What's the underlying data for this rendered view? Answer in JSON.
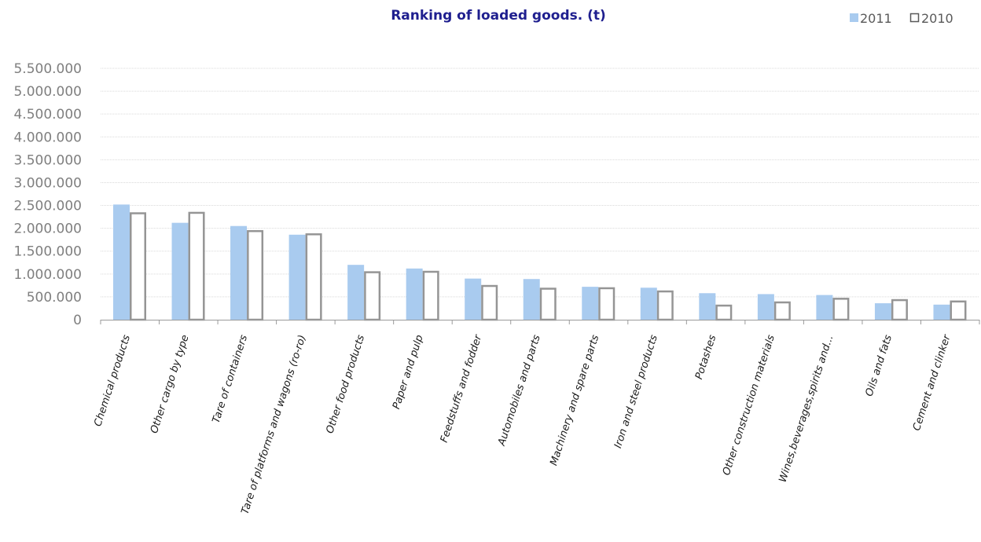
{
  "chart_data": {
    "type": "bar",
    "title": "Ranking of loaded goods. (t)",
    "xlabel": "",
    "ylabel": "",
    "categories": [
      "Chemical products",
      "Other cargo by type",
      "Tare of containers",
      "Tare of platforms and wagons (ro-ro)",
      "Other food products",
      "Paper and pulp",
      "Feedstuffs and fodder",
      "Automobiles and parts",
      "Machinery and spare parts",
      "Iron and steel products",
      "Potashes",
      "Other construction materials",
      "Wines,beverages,spirits and...",
      "Oils and fats",
      "Cement and clinker"
    ],
    "series": [
      {
        "name": "2011",
        "color": "#a9cbef",
        "style": "filled",
        "values": [
          2520000,
          2120000,
          2050000,
          1860000,
          1200000,
          1120000,
          900000,
          890000,
          720000,
          700000,
          580000,
          560000,
          540000,
          360000,
          330000
        ]
      },
      {
        "name": "2010",
        "color": "#959595",
        "style": "outline",
        "values": [
          2350000,
          2360000,
          1960000,
          1890000,
          1060000,
          1070000,
          760000,
          700000,
          710000,
          640000,
          330000,
          400000,
          480000,
          450000,
          420000
        ]
      }
    ],
    "yticks": [
      "0",
      "500.000",
      "1.000.000",
      "1.500.000",
      "2.000.000",
      "2.500.000",
      "3.000.000",
      "3.500.000",
      "4.000.000",
      "4.500.000",
      "5.000.000",
      "5.500.000"
    ],
    "ylim": [
      0,
      5500000
    ],
    "y_step": 500000,
    "grid": true,
    "legend_position": "top-right",
    "title_color": "#1f1f8f",
    "axis_color": "#9a9a9a",
    "grid_color": "#d9d9d9"
  }
}
